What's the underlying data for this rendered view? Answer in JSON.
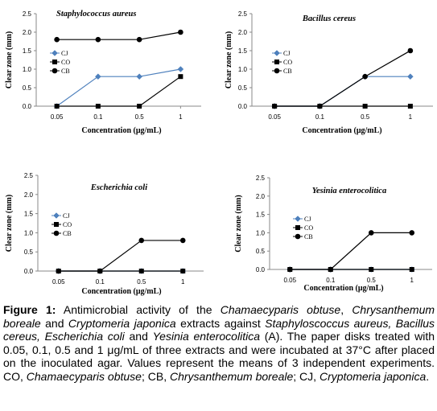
{
  "chart_data": [
    {
      "type": "line",
      "title": "Staphylococcus aureus",
      "xlabel": "Concentration (μg/mL)",
      "ylabel": "Clear zone (mm)",
      "categories": [
        "0.05",
        "0.1",
        "0.5",
        "1"
      ],
      "ylim": [
        0,
        2.5
      ],
      "yticks": [
        "0.0",
        "0.5",
        "1.0",
        "1.5",
        "2.0",
        "2.5"
      ],
      "grid": false,
      "legend": "left",
      "series": [
        {
          "name": "CJ",
          "color": "#4f81bd",
          "marker": "diamond",
          "values": [
            0,
            0.8,
            0.8,
            1.0
          ]
        },
        {
          "name": "CO",
          "color": "#000000",
          "marker": "square",
          "values": [
            0,
            0,
            0,
            0.8
          ]
        },
        {
          "name": "CB",
          "color": "#000000",
          "marker": "circle",
          "values": [
            1.8,
            1.8,
            1.8,
            2.0
          ]
        }
      ]
    },
    {
      "type": "line",
      "title": "Bacillus cereus",
      "xlabel": "Concentration (μg/mL)",
      "ylabel": "Clear zone (mm)",
      "categories": [
        "0.05",
        "0.1",
        "0.5",
        "1"
      ],
      "ylim": [
        0,
        2.5
      ],
      "yticks": [
        "0.0",
        "0.5",
        "1.0",
        "1.5",
        "2.0",
        "2.5"
      ],
      "grid": false,
      "legend": "left",
      "series": [
        {
          "name": "CJ",
          "color": "#4f81bd",
          "marker": "diamond",
          "values": [
            0,
            0,
            0.8,
            0.8
          ]
        },
        {
          "name": "CO",
          "color": "#000000",
          "marker": "square",
          "values": [
            0,
            0,
            0,
            0
          ]
        },
        {
          "name": "CB",
          "color": "#000000",
          "marker": "circle",
          "values": [
            0,
            0,
            0.8,
            1.5
          ]
        }
      ]
    },
    {
      "type": "line",
      "title": "Escherichia coli",
      "xlabel": "Concentration (μg/mL)",
      "ylabel": "Clear zone (mm)",
      "categories": [
        "0.05",
        "0.1",
        "0.5",
        "1"
      ],
      "ylim": [
        0,
        2.5
      ],
      "yticks": [
        "0.0",
        "0.5",
        "1.0",
        "1.5",
        "2.0",
        "2.5"
      ],
      "grid": false,
      "legend": "left",
      "series": [
        {
          "name": "CJ",
          "color": "#4f81bd",
          "marker": "diamond",
          "values": [
            0,
            0,
            0,
            0
          ]
        },
        {
          "name": "CO",
          "color": "#000000",
          "marker": "square",
          "values": [
            0,
            0,
            0,
            0
          ]
        },
        {
          "name": "CB",
          "color": "#000000",
          "marker": "circle",
          "values": [
            0,
            0,
            0.8,
            0.8
          ]
        }
      ]
    },
    {
      "type": "line",
      "title": "Yesinia enterocolitica",
      "xlabel": "Concentration (μg/mL)",
      "ylabel": "Clear zone (mm)",
      "categories": [
        "0.05",
        "0.1",
        "0.5",
        "1"
      ],
      "ylim": [
        0,
        2.5
      ],
      "yticks": [
        "0.0",
        "0.5",
        "1.0",
        "1.5",
        "2.0",
        "2.5"
      ],
      "grid": false,
      "legend": "left",
      "series": [
        {
          "name": "CJ",
          "color": "#4f81bd",
          "marker": "diamond",
          "values": [
            0,
            0,
            0,
            0
          ]
        },
        {
          "name": "CO",
          "color": "#000000",
          "marker": "square",
          "values": [
            0,
            0,
            0,
            0
          ]
        },
        {
          "name": "CB",
          "color": "#000000",
          "marker": "circle",
          "values": [
            0,
            0,
            1.0,
            1.0
          ]
        }
      ]
    }
  ],
  "caption": {
    "label": "Figure 1:",
    "segments": [
      {
        "t": " Antimicrobial activity of the ",
        "i": false
      },
      {
        "t": "Chamaecyparis obtuse",
        "i": true
      },
      {
        "t": ", ",
        "i": false
      },
      {
        "t": "Chrysanthemum boreale",
        "i": true
      },
      {
        "t": " and ",
        "i": false
      },
      {
        "t": "Cryptomeria japonica",
        "i": true
      },
      {
        "t": " extracts against ",
        "i": false
      },
      {
        "t": "Staphyloscoccus aureus, Bacillus cereus, Escherichia coli",
        "i": true
      },
      {
        "t": " and ",
        "i": false
      },
      {
        "t": "Yesinia enterocolitica",
        "i": true
      },
      {
        "t": " (A). The paper disks treated with 0.05, 0.1, 0.5 and 1 μg/mL of three extracts and were incubated at 37°C after placed on the inoculated agar. Values represent the means of 3 independent experiments. CO, ",
        "i": false
      },
      {
        "t": "Chamaecyparis obtuse",
        "i": true
      },
      {
        "t": "; CB, ",
        "i": false
      },
      {
        "t": "Chrysanthemum boreale",
        "i": true
      },
      {
        "t": "; CJ, ",
        "i": false
      },
      {
        "t": "Cryptomeria japonica",
        "i": true
      },
      {
        "t": ".",
        "i": false
      }
    ]
  }
}
